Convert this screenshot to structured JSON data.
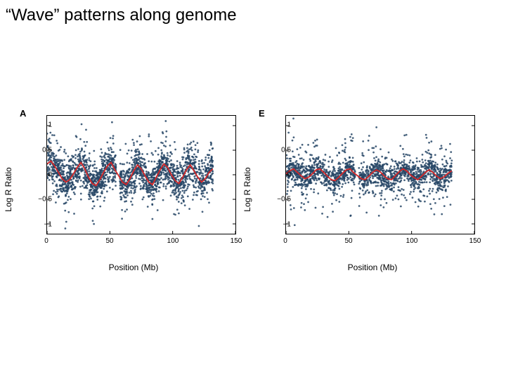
{
  "title": "“Wave” patterns along genome",
  "title_fontsize": 24,
  "title_color": "#000000",
  "background_color": "#ffffff",
  "panels": [
    {
      "letter": "A",
      "xlabel": "Position (Mb)",
      "ylabel": "Log R Ratio",
      "label_fontsize": 12,
      "tick_fontsize": 10,
      "xlim": [
        0,
        150
      ],
      "ylim": [
        -1.2,
        1.2
      ],
      "xticks": [
        0,
        50,
        100,
        150
      ],
      "yticks": [
        -1,
        -0.5,
        0,
        0.5,
        1
      ],
      "ytick_labels": [
        "−1",
        "−0.5",
        "0",
        "0.5",
        "1"
      ],
      "border_color": "#000000",
      "scatter_color": "#274666",
      "scatter_radius": 1.4,
      "scatter_opacity": 0.85,
      "data_xmax": 132,
      "scatter_count": 2200,
      "scatter_inner_spread": 0.55,
      "line_color": "#d62728",
      "line_width": 1.8,
      "line_x": [
        0,
        3,
        6,
        9,
        12,
        15,
        18,
        21,
        24,
        27,
        30,
        33,
        36,
        39,
        42,
        45,
        48,
        51,
        54,
        57,
        60,
        63,
        66,
        69,
        72,
        75,
        78,
        81,
        84,
        87,
        90,
        93,
        96,
        99,
        102,
        105,
        108,
        111,
        114,
        117,
        120,
        123,
        126,
        129,
        132
      ],
      "line_y": [
        0.22,
        0.28,
        0.18,
        0.05,
        -0.08,
        -0.15,
        -0.1,
        0.02,
        0.15,
        0.25,
        0.12,
        -0.05,
        -0.18,
        -0.22,
        -0.1,
        0.05,
        0.18,
        0.25,
        0.1,
        -0.02,
        -0.15,
        -0.2,
        -0.08,
        0.08,
        0.2,
        0.12,
        -0.02,
        -0.15,
        -0.2,
        -0.05,
        0.1,
        0.22,
        0.15,
        0.0,
        -0.12,
        -0.18,
        -0.05,
        0.1,
        0.2,
        0.08,
        -0.05,
        -0.15,
        -0.08,
        0.05,
        0.12
      ],
      "gap_x": [
        55,
        58
      ]
    },
    {
      "letter": "E",
      "xlabel": "Position (Mb)",
      "ylabel": "Log R Ratio",
      "label_fontsize": 12,
      "tick_fontsize": 10,
      "xlim": [
        0,
        150
      ],
      "ylim": [
        -1.2,
        1.2
      ],
      "xticks": [
        0,
        50,
        100,
        150
      ],
      "yticks": [
        -1,
        -0.5,
        0,
        0.5,
        1
      ],
      "ytick_labels": [
        "−1",
        "−0.5",
        "0",
        "0.5",
        "1"
      ],
      "border_color": "#000000",
      "scatter_color": "#274666",
      "scatter_radius": 1.4,
      "scatter_opacity": 0.85,
      "data_xmax": 132,
      "scatter_count": 1800,
      "scatter_inner_spread": 0.42,
      "line_color": "#d62728",
      "line_width": 1.8,
      "line_x": [
        0,
        3,
        6,
        9,
        12,
        15,
        18,
        21,
        24,
        27,
        30,
        33,
        36,
        39,
        42,
        45,
        48,
        51,
        54,
        57,
        60,
        63,
        66,
        69,
        72,
        75,
        78,
        81,
        84,
        87,
        90,
        93,
        96,
        99,
        102,
        105,
        108,
        111,
        114,
        117,
        120,
        123,
        126,
        129,
        132
      ],
      "line_y": [
        0.02,
        0.08,
        0.12,
        0.05,
        -0.02,
        -0.08,
        -0.05,
        0.02,
        0.1,
        0.12,
        0.05,
        -0.03,
        -0.1,
        -0.12,
        -0.05,
        0.03,
        0.1,
        0.12,
        0.04,
        -0.02,
        -0.08,
        -0.1,
        -0.03,
        0.05,
        0.1,
        0.06,
        -0.02,
        -0.08,
        -0.1,
        -0.02,
        0.06,
        0.12,
        0.08,
        0.0,
        -0.06,
        -0.1,
        -0.03,
        0.05,
        0.1,
        0.05,
        -0.03,
        -0.08,
        -0.04,
        0.03,
        0.08
      ],
      "gap_x": [
        55,
        58
      ]
    }
  ]
}
